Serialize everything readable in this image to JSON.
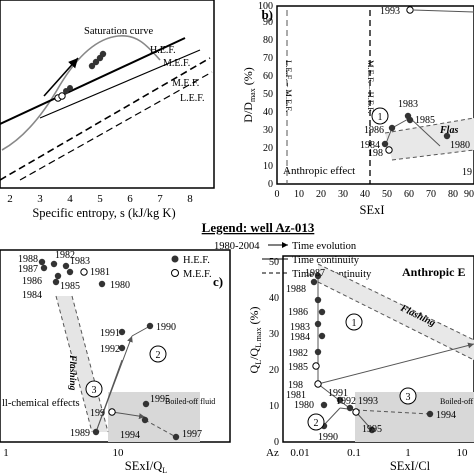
{
  "panel_a": {
    "xlabel": "Specific entropy, s (kJ/kg K)",
    "x_ticks": [
      "2",
      "3",
      "4",
      "5",
      "6",
      "7",
      "8"
    ],
    "curve_label": "Saturation curve",
    "lines": [
      "H.E.F.",
      "M.E.F.",
      "M.E.F.",
      "L.E.F."
    ]
  },
  "panel_b": {
    "letter": "b)",
    "ylabel": "D/D",
    "ylabel_sub": "max",
    "ylabel_unit": "(%)",
    "xlabel": "SExI",
    "y_ticks": [
      "0",
      "10",
      "20",
      "30",
      "40",
      "50",
      "60",
      "70",
      "80",
      "90",
      "100"
    ],
    "x_ticks": [
      "0",
      "10",
      "20",
      "30",
      "40",
      "50",
      "60",
      "70",
      "80",
      "90"
    ],
    "vline1": "L.E.F. – M.E.F.",
    "vline2": "M.E.F. – H.E.F.",
    "note": "Anthropic effect",
    "flashing": "Flas",
    "circle": "1",
    "years": [
      "1993",
      "1983",
      "1985",
      "1986",
      "1984",
      "198",
      "1980",
      "19"
    ]
  },
  "legend": {
    "title": "Legend: well Az-013",
    "period": "1980-2004",
    "time_evolution": "Time evolution",
    "hef": "H.E.F.",
    "time_continuity": "Time continuity",
    "mef": "M.E.F.",
    "time_discontinuity": "Time discontinuity"
  },
  "panel_c": {
    "letter": "c)",
    "xlabel_main": "SExI/Q",
    "xlabel_sub": "L",
    "x_ticks": [
      "1",
      "10"
    ],
    "flashing": "Flashing",
    "boiled": "Boiled-off fluid",
    "effects": "ll-chemical effects",
    "circles": [
      "2",
      "3"
    ],
    "years": [
      "1988",
      "1982",
      "1987",
      "1983",
      "1981",
      "1986",
      "1985",
      "1984",
      "1980",
      "1991",
      "1990",
      "1992",
      "1995",
      "199",
      "1989",
      "1994",
      "1997"
    ]
  },
  "panel_d": {
    "title": "Anthropic E",
    "ylabel": "Q",
    "ylabel_sub": "L",
    "ylabel_mid": "/Q",
    "ylabel_sub2": "L max",
    "ylabel_unit": "(%)",
    "xlabel": "SExI/Cl",
    "y_ticks": [
      "0",
      "10",
      "20",
      "30",
      "40",
      "50"
    ],
    "x_ticks": [
      "0.01",
      "0.1",
      "1",
      "10"
    ],
    "x_prefix": "Az",
    "flashing": "Flashing",
    "boiled": "Boiled-off fluid",
    "circles": [
      "1",
      "2",
      "3"
    ],
    "years": [
      "1987",
      "1988",
      "1986",
      "1983",
      "1984",
      "1982",
      "1985",
      "198",
      "1981",
      "1991",
      "1980",
      "1992",
      "1993",
      "1990",
      "1995",
      "1994"
    ]
  }
}
